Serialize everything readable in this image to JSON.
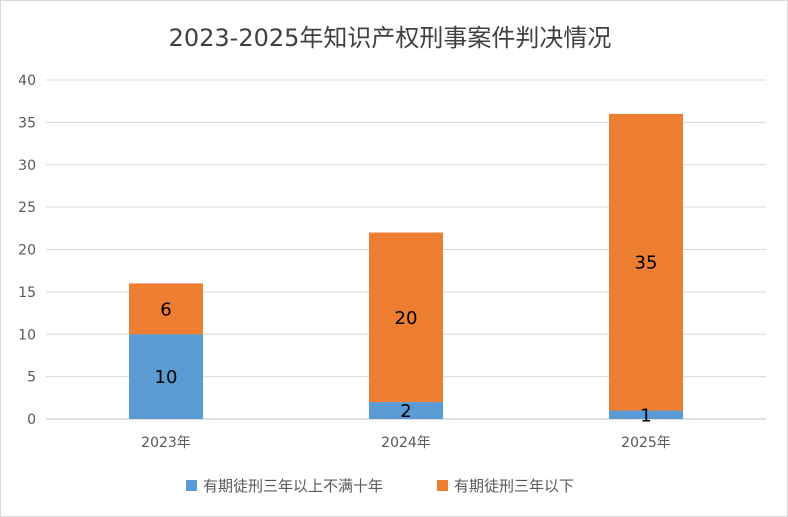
{
  "chart_data": {
    "type": "bar",
    "stacked": true,
    "title": "2023-2025年知识产权刑事案件判决情况",
    "categories": [
      "2023年",
      "2024年",
      "2025年"
    ],
    "series": [
      {
        "name": "有期徒刑三年以上不满十年",
        "values": [
          10,
          2,
          1
        ],
        "color": "#5b9bd5"
      },
      {
        "name": "有期徒刑三年以下",
        "values": [
          6,
          20,
          35
        ],
        "color": "#ed7d31"
      }
    ],
    "ylim": [
      0,
      40
    ],
    "yticks": [
      0,
      5,
      10,
      15,
      20,
      25,
      30,
      35,
      40
    ],
    "xlabel": "",
    "ylabel": "",
    "grid": true,
    "legend": "bottom"
  }
}
